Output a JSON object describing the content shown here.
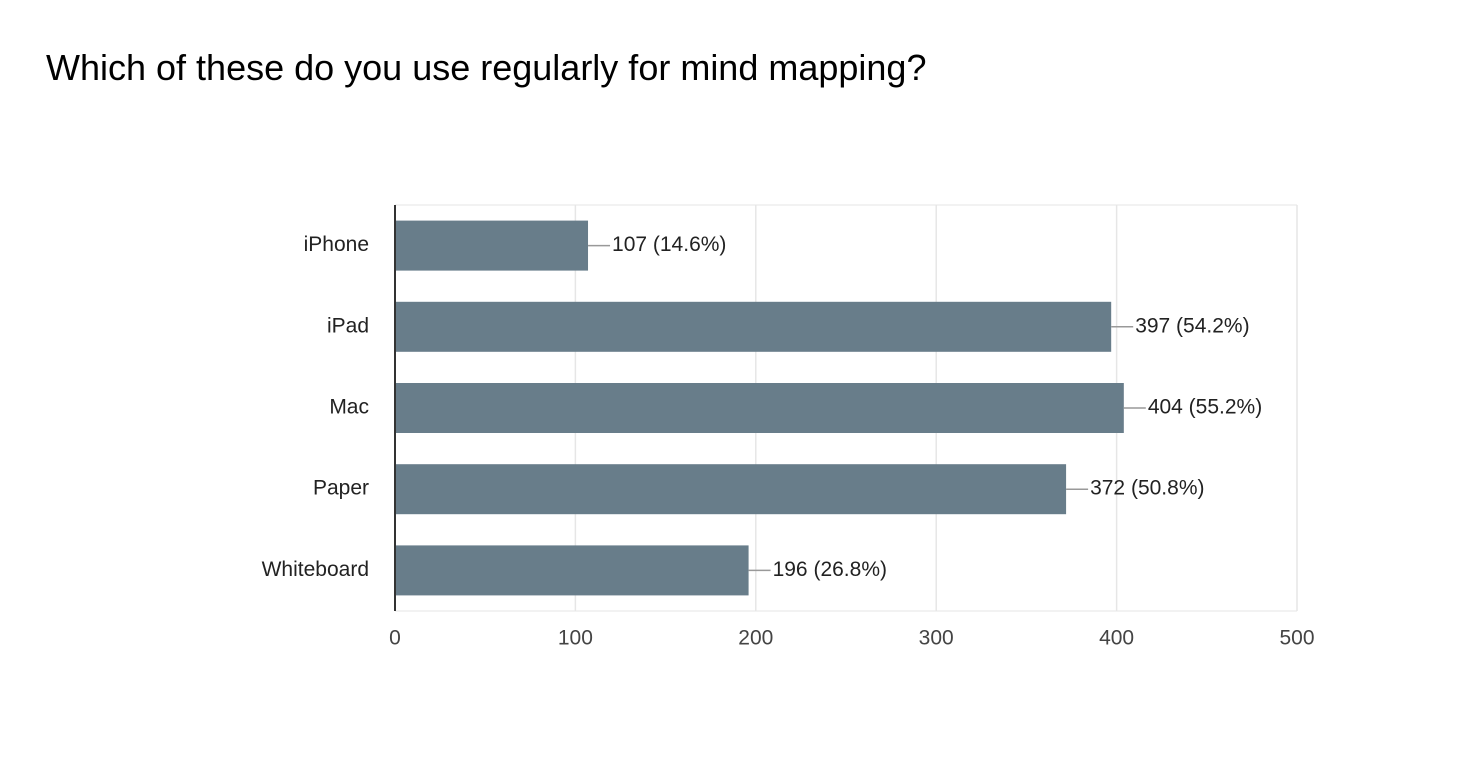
{
  "chart_data": {
    "type": "bar",
    "orientation": "horizontal",
    "title": "Which of these do you use regularly for mind mapping?",
    "categories": [
      "iPhone",
      "iPad",
      "Mac",
      "Paper",
      "Whiteboard"
    ],
    "values": [
      107,
      397,
      404,
      372,
      196
    ],
    "value_labels": [
      "107 (14.6%)",
      "397 (54.2%)",
      "404 (55.2%)",
      "372 (50.8%)",
      "196 (26.8%)"
    ],
    "color": "#687d8a",
    "xlim": [
      0,
      500
    ],
    "xticks": [
      0,
      100,
      200,
      300,
      400,
      500
    ],
    "grid": true
  }
}
